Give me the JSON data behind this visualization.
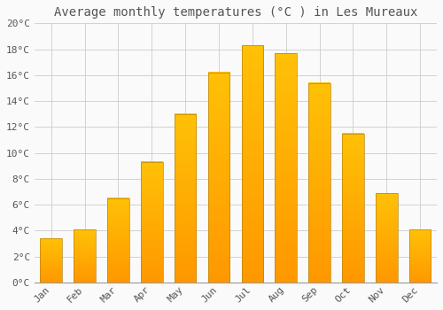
{
  "title": "Average monthly temperatures (°C ) in Les Mureaux",
  "months": [
    "Jan",
    "Feb",
    "Mar",
    "Apr",
    "May",
    "Jun",
    "Jul",
    "Aug",
    "Sep",
    "Oct",
    "Nov",
    "Dec"
  ],
  "temperatures": [
    3.4,
    4.1,
    6.5,
    9.3,
    13.0,
    16.2,
    18.3,
    17.7,
    15.4,
    11.5,
    6.9,
    4.1
  ],
  "bar_color_top": "#FFC107",
  "bar_color_bottom": "#FF9800",
  "bar_edge_color": "#B8860B",
  "background_color": "#FAFAFA",
  "grid_color": "#CCCCCC",
  "text_color": "#555555",
  "ylim": [
    0,
    20
  ],
  "ytick_step": 2,
  "title_fontsize": 10,
  "tick_fontsize": 8
}
